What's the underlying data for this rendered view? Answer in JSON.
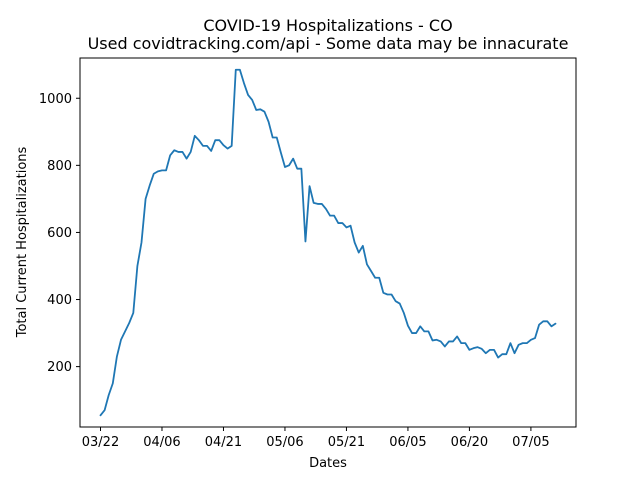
{
  "chart_data": {
    "type": "line",
    "title": "COVID-19 Hospitalizations - CO",
    "subtitle": "Used covidtracking.com/api - Some data may be innacurate",
    "xlabel": "Dates",
    "ylabel": "Total Current Hospitalizations",
    "x_start": "03/22",
    "xlim": [
      "03/17",
      "07/16"
    ],
    "ylim": [
      20,
      1120
    ],
    "grid": false,
    "legend": "none",
    "line_color": "#1f77b4",
    "xticks": [
      {
        "date": "03/22",
        "label": "03/22"
      },
      {
        "date": "04/06",
        "label": "04/06"
      },
      {
        "date": "04/21",
        "label": "04/21"
      },
      {
        "date": "05/06",
        "label": "05/06"
      },
      {
        "date": "05/21",
        "label": "05/21"
      },
      {
        "date": "06/05",
        "label": "06/05"
      },
      {
        "date": "06/20",
        "label": "06/20"
      },
      {
        "date": "07/05",
        "label": "07/05"
      }
    ],
    "yticks": [
      {
        "value": 200,
        "label": "200"
      },
      {
        "value": 400,
        "label": "400"
      },
      {
        "value": 600,
        "label": "600"
      },
      {
        "value": 800,
        "label": "800"
      },
      {
        "value": 1000,
        "label": "1000"
      }
    ],
    "series": [
      {
        "values": [
          55,
          70,
          115,
          150,
          230,
          280,
          305,
          330,
          360,
          500,
          570,
          700,
          740,
          775,
          782,
          785,
          785,
          830,
          845,
          840,
          840,
          820,
          840,
          888,
          875,
          858,
          858,
          843,
          875,
          875,
          860,
          850,
          858,
          1085,
          1085,
          1045,
          1010,
          995,
          965,
          967,
          960,
          930,
          883,
          883,
          838,
          795,
          800,
          820,
          790,
          790,
          573,
          738,
          688,
          685,
          685,
          670,
          650,
          650,
          628,
          628,
          615,
          620,
          570,
          540,
          560,
          505,
          485,
          465,
          465,
          420,
          415,
          415,
          395,
          388,
          360,
          322,
          300,
          300,
          320,
          305,
          305,
          278,
          280,
          275,
          260,
          275,
          275,
          290,
          270,
          270,
          250,
          255,
          258,
          253,
          240,
          250,
          250,
          227,
          237,
          237,
          270,
          240,
          265,
          270,
          270,
          280,
          285,
          325,
          335,
          335,
          320,
          328
        ]
      }
    ]
  }
}
